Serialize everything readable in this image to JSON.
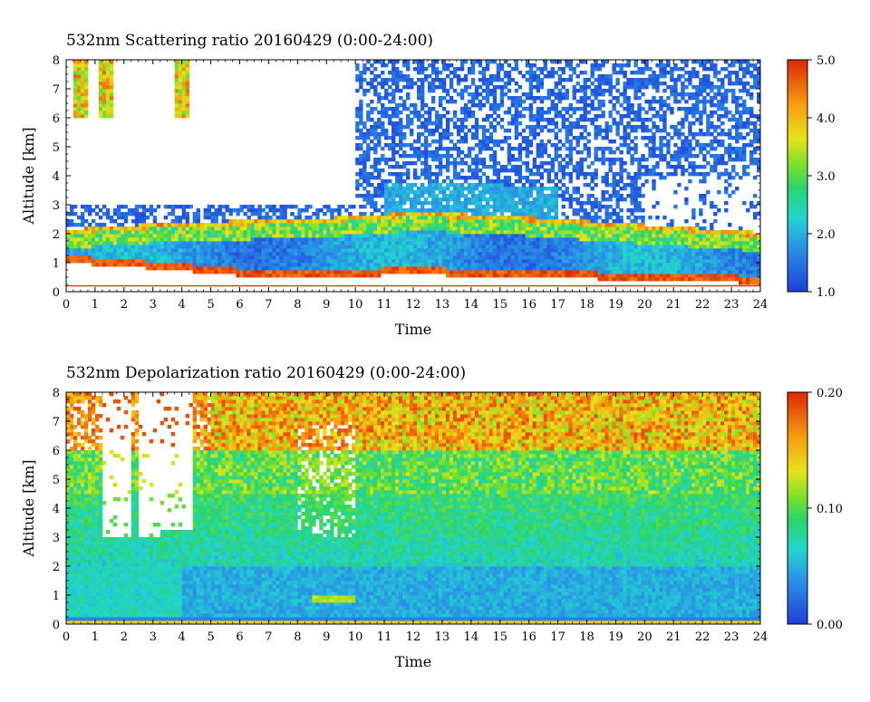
{
  "chart_data": [
    {
      "type": "heatmap",
      "title": "532nm Scattering ratio  20160429 (0:00-24:00)",
      "xlabel": "Time",
      "ylabel": "Altitude [km]",
      "xlim": [
        0,
        24
      ],
      "ylim": [
        0,
        8
      ],
      "x_ticks": [
        "0",
        "1",
        "2",
        "3",
        "4",
        "5",
        "6",
        "7",
        "8",
        "9",
        "10",
        "11",
        "12",
        "13",
        "14",
        "15",
        "16",
        "17",
        "18",
        "19",
        "20",
        "21",
        "22",
        "23",
        "24"
      ],
      "y_ticks": [
        "0",
        "1",
        "2",
        "3",
        "4",
        "5",
        "6",
        "7",
        "8"
      ],
      "colorbar": {
        "min": 1.0,
        "max": 5.0,
        "ticks": [
          "1.0",
          "2.0",
          "3.0",
          "4.0",
          "5.0"
        ]
      },
      "features": {
        "boundary_layer_top_km": [
          [
            0,
            2.0
          ],
          [
            3,
            2.2
          ],
          [
            6,
            2.3
          ],
          [
            9,
            2.4
          ],
          [
            12,
            2.6
          ],
          [
            15,
            2.5
          ],
          [
            18,
            2.3
          ],
          [
            21,
            2.1
          ],
          [
            24,
            1.9
          ]
        ],
        "aerosol_base_km": [
          [
            0,
            1.0
          ],
          [
            3,
            0.8
          ],
          [
            6,
            0.55
          ],
          [
            9,
            0.5
          ],
          [
            12,
            0.6
          ],
          [
            15,
            0.5
          ],
          [
            18,
            0.45
          ],
          [
            21,
            0.35
          ],
          [
            24,
            0.3
          ]
        ],
        "ground_line_km": 0.2,
        "missing_data_upper_region": [
          [
            0,
            10,
            3.0,
            8.0
          ]
        ],
        "cirrus_columns_hours": [
          0.5,
          1.4,
          4.0
        ]
      }
    },
    {
      "type": "heatmap",
      "title": "532nm Depolarization ratio  20160429 (0:00-24:00)",
      "xlabel": "Time",
      "ylabel": "Altitude [km]",
      "xlim": [
        0,
        24
      ],
      "ylim": [
        0,
        8
      ],
      "x_ticks": [
        "0",
        "1",
        "2",
        "3",
        "4",
        "5",
        "6",
        "7",
        "8",
        "9",
        "10",
        "11",
        "12",
        "13",
        "14",
        "15",
        "16",
        "17",
        "18",
        "19",
        "20",
        "21",
        "22",
        "23",
        "24"
      ],
      "y_ticks": [
        "0",
        "1",
        "2",
        "3",
        "4",
        "5",
        "6",
        "7",
        "8"
      ],
      "colorbar": {
        "min": 0.0,
        "max": 0.2,
        "ticks": [
          "0.00",
          "0.10",
          "0.20"
        ]
      },
      "features": {
        "missing_data_upper_region": [
          [
            1.2,
            2.2,
            3.0,
            8.0
          ],
          [
            2.5,
            3.3,
            3.0,
            8.0
          ],
          [
            3.3,
            4.4,
            3.3,
            8.0
          ]
        ],
        "low_level_band_km": [
          0.1,
          0.25
        ],
        "dust_feature_hours": [
          8.5,
          10.0
        ]
      }
    }
  ]
}
